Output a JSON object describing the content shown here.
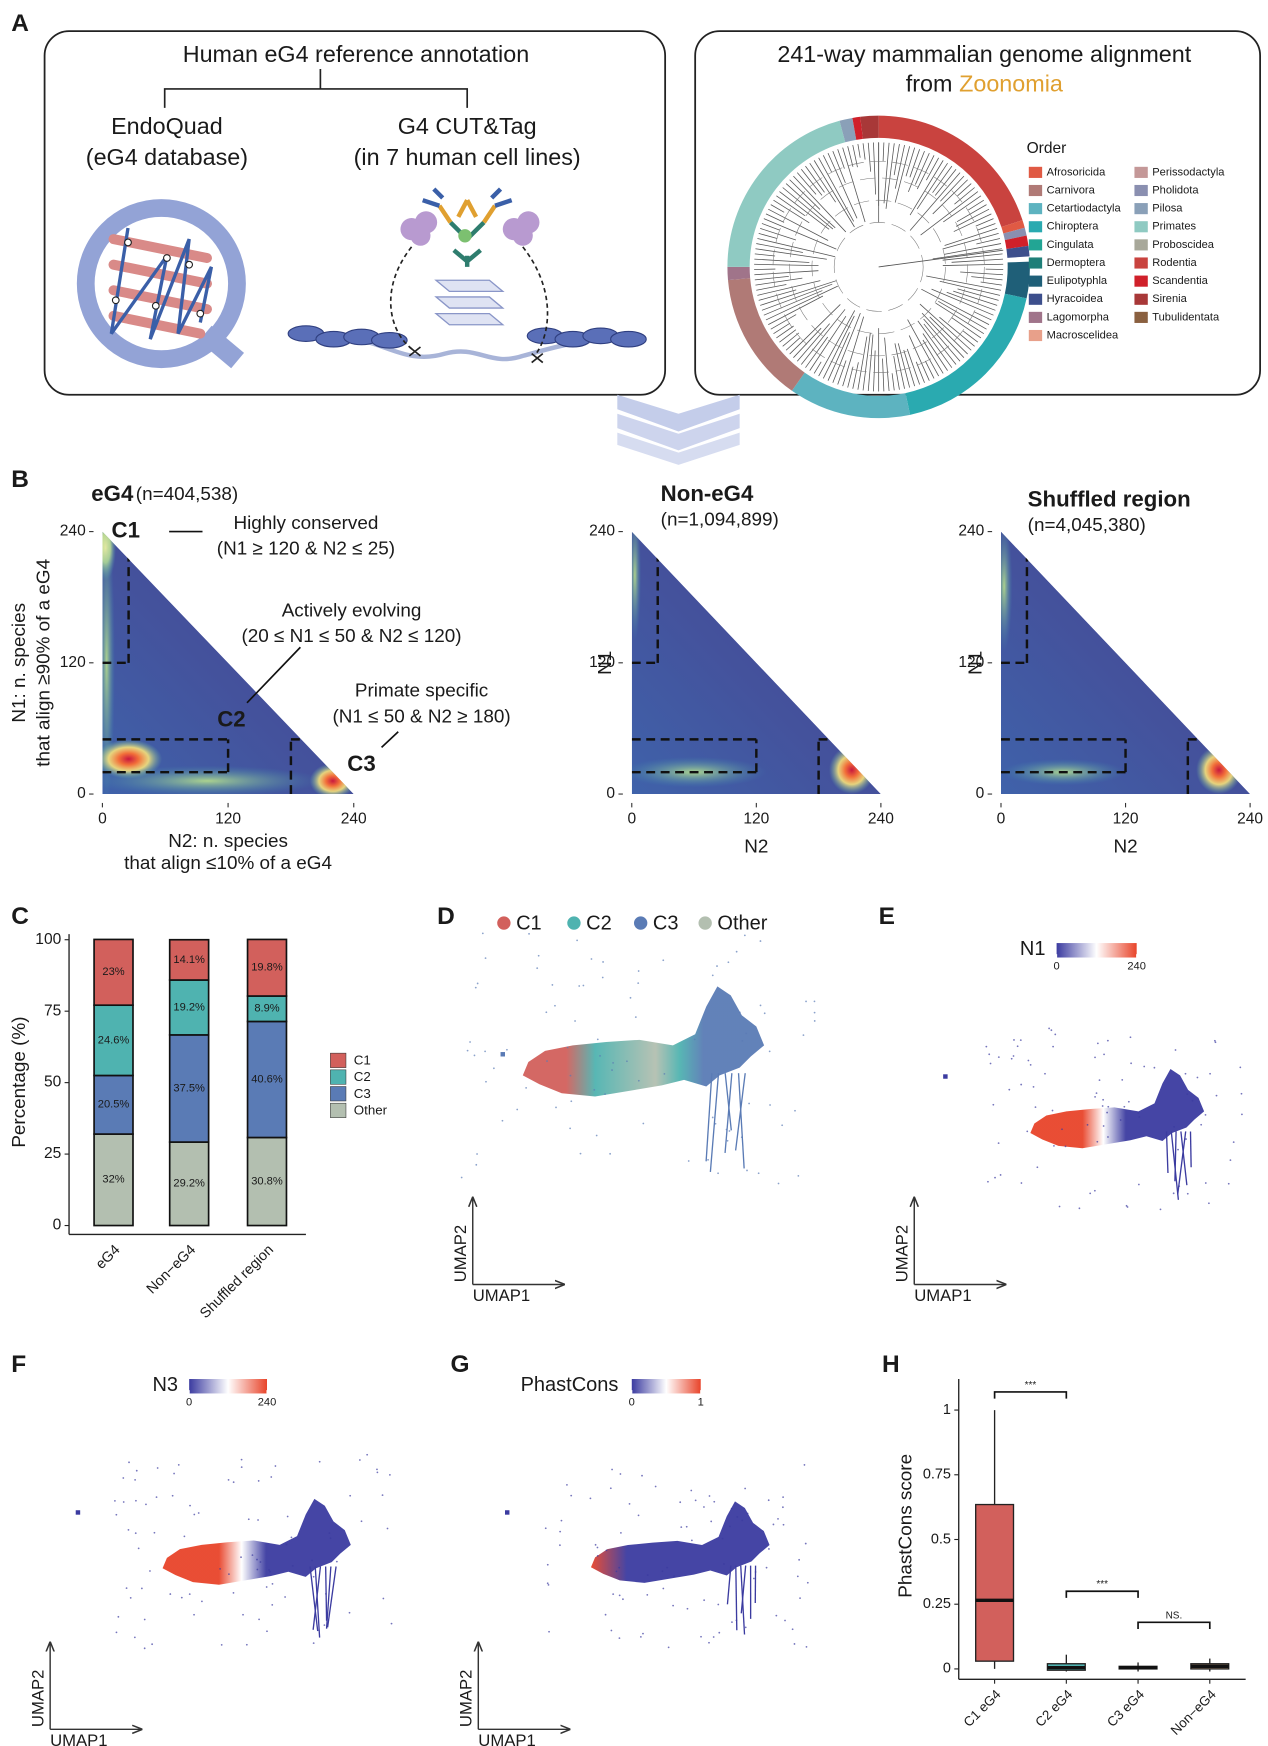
{
  "panel_labels": [
    "A",
    "B",
    "C",
    "D",
    "E",
    "F",
    "G",
    "H"
  ],
  "panel_a": {
    "left": {
      "title": "Human eG4 reference annotation",
      "endoquad": "EndoQuad",
      "endoquad_sub": "(eG4 database)",
      "cuttag": "G4 CUT&Tag",
      "cuttag_sub": "(in 7 human cell lines)"
    },
    "right": {
      "title": "241-way mammalian genome alignment",
      "from": "from",
      "zoonomia": "Zoonomia",
      "legend_title": "Order",
      "orders": [
        {
          "name": "Afrosoricida",
          "color": "#e05a44"
        },
        {
          "name": "Carnivora",
          "color": "#b07a76"
        },
        {
          "name": "Cetartiodactyla",
          "color": "#5db3c0"
        },
        {
          "name": "Chiroptera",
          "color": "#2aaab0"
        },
        {
          "name": "Cingulata",
          "color": "#22a594"
        },
        {
          "name": "Dermoptera",
          "color": "#1f7f78"
        },
        {
          "name": "Eulipotyphla",
          "color": "#1f5f78"
        },
        {
          "name": "Hyracoidea",
          "color": "#3d4f8c"
        },
        {
          "name": "Lagomorpha",
          "color": "#a0748a"
        },
        {
          "name": "Macroscelidea",
          "color": "#e8a08a"
        },
        {
          "name": "Perissodactyla",
          "color": "#c49898"
        },
        {
          "name": "Pholidota",
          "color": "#8a8fb0"
        },
        {
          "name": "Pilosa",
          "color": "#8aa0b8"
        },
        {
          "name": "Primates",
          "color": "#8fcac2"
        },
        {
          "name": "Proboscidea",
          "color": "#a8a89a"
        },
        {
          "name": "Rodentia",
          "color": "#c9433f"
        },
        {
          "name": "Scandentia",
          "color": "#d0202a"
        },
        {
          "name": "Sirenia",
          "color": "#a83838"
        },
        {
          "name": "Tubulidentata",
          "color": "#8a6040"
        }
      ]
    }
  },
  "chart_data": [
    {
      "type": "density",
      "title": "eG4",
      "subtitle": "(n=404,538)",
      "xlabel": [
        "N2: n. species",
        "that align ≤10% of a eG4"
      ],
      "ylabel": [
        "N1: n. species",
        "that align ≥90% of a eG4"
      ],
      "xlim": [
        0,
        240
      ],
      "ylim": [
        0,
        240
      ],
      "xticks": [
        0,
        120,
        240
      ],
      "yticks": [
        0,
        120,
        240
      ],
      "regions": [
        {
          "name": "C1",
          "n1": [
            120,
            240
          ],
          "n2": [
            0,
            25
          ]
        },
        {
          "name": "C2",
          "n1": [
            20,
            50
          ],
          "n2": [
            0,
            120
          ]
        },
        {
          "name": "C3",
          "n1": [
            0,
            50
          ],
          "n2": [
            180,
            240
          ]
        }
      ],
      "annotations": [
        {
          "text": "C1",
          "color": "#d2605c"
        },
        {
          "text": "Highly conserved",
          "color": "#d2605c"
        },
        {
          "text": "(N1 ≥ 120 & N2 ≤ 25)",
          "color": "#d2605c"
        },
        {
          "text": "Actively evolving",
          "color": "#4fb3b0"
        },
        {
          "text": "(20 ≤ N1 ≤ 50 & N2 ≤ 120)",
          "color": "#4fb3b0"
        },
        {
          "text": "C2",
          "color": "#4fb3b0"
        },
        {
          "text": "Primate specific",
          "color": "#5a7bb5"
        },
        {
          "text": "(N1 ≤ 50 & N2 ≥ 180)",
          "color": "#5a7bb5"
        },
        {
          "text": "C3",
          "color": "#5a7bb5"
        }
      ]
    },
    {
      "type": "density",
      "title": "Non-eG4",
      "subtitle": "(n=1,094,899)",
      "xlabel": "N2",
      "ylabel": "N1",
      "xlim": [
        0,
        240
      ],
      "ylim": [
        0,
        240
      ],
      "xticks": [
        0,
        120,
        240
      ],
      "yticks": [
        0,
        120,
        240
      ],
      "regions": [
        {
          "name": "C1",
          "n1": [
            120,
            240
          ],
          "n2": [
            0,
            25
          ]
        },
        {
          "name": "C2",
          "n1": [
            20,
            50
          ],
          "n2": [
            0,
            120
          ]
        },
        {
          "name": "C3",
          "n1": [
            0,
            50
          ],
          "n2": [
            180,
            240
          ]
        }
      ]
    },
    {
      "type": "density",
      "title": "Shuffled region",
      "subtitle": "(n=4,045,380)",
      "xlabel": "N2",
      "ylabel": "N1",
      "xlim": [
        0,
        240
      ],
      "ylim": [
        0,
        240
      ],
      "xticks": [
        0,
        120,
        240
      ],
      "yticks": [
        0,
        120,
        240
      ],
      "regions": [
        {
          "name": "C1",
          "n1": [
            120,
            240
          ],
          "n2": [
            0,
            25
          ]
        },
        {
          "name": "C2",
          "n1": [
            20,
            50
          ],
          "n2": [
            0,
            120
          ]
        },
        {
          "name": "C3",
          "n1": [
            0,
            50
          ],
          "n2": [
            180,
            240
          ]
        }
      ]
    },
    {
      "type": "stacked_bar",
      "ylabel": "Percentage (%)",
      "categories": [
        "eG4",
        "Non−eG4",
        "Shuffled region"
      ],
      "ylim": [
        0,
        100
      ],
      "yticks": [
        0,
        25,
        50,
        75,
        100
      ],
      "series": [
        {
          "name": "C1",
          "color": "#d2605c",
          "values": [
            23,
            14.1,
            19.8
          ],
          "value_labels": [
            "23%",
            "14.1%",
            "19.8%"
          ]
        },
        {
          "name": "C2",
          "color": "#4fb3b0",
          "values": [
            24.6,
            19.2,
            8.9
          ],
          "value_labels": [
            "24.6%",
            "19.2%",
            "8.9%"
          ]
        },
        {
          "name": "C3",
          "color": "#5a7bb5",
          "values": [
            20.5,
            37.5,
            40.6
          ],
          "value_labels": [
            "20.5%",
            "37.5%",
            "40.6%"
          ]
        },
        {
          "name": "Other",
          "color": "#b3bfb0",
          "values": [
            32,
            29.2,
            30.8
          ],
          "value_labels": [
            "32%",
            "29.2%",
            "30.8%"
          ]
        }
      ]
    },
    {
      "type": "umap",
      "xlabel": "UMAP1",
      "ylabel": "UMAP2",
      "legend": [
        {
          "name": "C1",
          "color": "#d2605c"
        },
        {
          "name": "C2",
          "color": "#4fb3b0"
        },
        {
          "name": "C3",
          "color": "#5a7bb5"
        },
        {
          "name": "Other",
          "color": "#b3bfb0"
        }
      ]
    },
    {
      "type": "umap",
      "xlabel": "UMAP1",
      "ylabel": "UMAP2",
      "colorbar": {
        "label": "N1",
        "lim": [
          0,
          240
        ],
        "ticks": [
          0,
          240
        ],
        "colors": [
          "#3b3ba0",
          "#ffffff",
          "#e8442a"
        ]
      }
    },
    {
      "type": "umap",
      "xlabel": "UMAP1",
      "ylabel": "UMAP2",
      "colorbar": {
        "label": "N3",
        "lim": [
          0,
          240
        ],
        "ticks": [
          0,
          240
        ],
        "colors": [
          "#3b3ba0",
          "#ffffff",
          "#e8442a"
        ]
      }
    },
    {
      "type": "umap",
      "xlabel": "UMAP1",
      "ylabel": "UMAP2",
      "colorbar": {
        "label": "PhastCons",
        "lim": [
          0,
          1
        ],
        "ticks": [
          0,
          1
        ],
        "colors": [
          "#3b3ba0",
          "#ffffff",
          "#e8442a"
        ]
      }
    },
    {
      "type": "box",
      "ylabel": "PhastCons score",
      "categories": [
        "C1 eG4",
        "C2 eG4",
        "C3 eG4",
        "Non−eG4"
      ],
      "ylim": [
        -0.04,
        1.12
      ],
      "yticks": [
        0,
        0.25,
        0.5,
        0.75,
        1
      ],
      "colors": [
        "#d2605c",
        "#4fb3b0",
        "#5a7bb5",
        "#c9a27a"
      ],
      "min": [
        0,
        -0.01,
        -0.01,
        -0.01
      ],
      "q1": [
        0.03,
        -0.005,
        0,
        0
      ],
      "median": [
        0.265,
        0.005,
        0.005,
        0.01
      ],
      "q3": [
        0.635,
        0.02,
        0.01,
        0.02
      ],
      "max": [
        1,
        0.055,
        0.025,
        0.04
      ],
      "significance": [
        {
          "pair": [
            0,
            1
          ],
          "y": 1.07,
          "label": "***"
        },
        {
          "pair": [
            1,
            2
          ],
          "y": 0.3,
          "label": "***"
        },
        {
          "pair": [
            2,
            3
          ],
          "y": 0.18,
          "label": "NS."
        }
      ]
    }
  ]
}
